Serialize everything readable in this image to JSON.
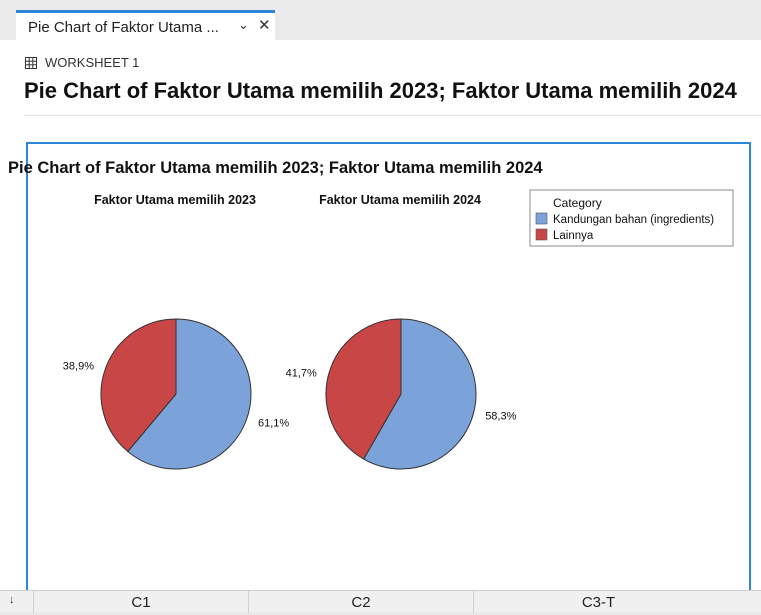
{
  "tab": {
    "title": "Pie Chart of Faktor Utama ...",
    "chevron": "⌄",
    "close": "✕"
  },
  "worksheet": {
    "icon": "grid-icon",
    "label": "WORKSHEET 1"
  },
  "page_title": "Pie Chart of Faktor Utama memilih 2023; Faktor Utama memilih 2024",
  "chart_data": {
    "type": "pie",
    "title": "Pie Chart of Faktor Utama memilih 2023; Faktor Utama memilih 2024",
    "legend": {
      "title": "Category",
      "placement": "top-right"
    },
    "categories": [
      "Kandungan bahan (ingredients)",
      "Lainnya"
    ],
    "colors": [
      "#7ba3d9",
      "#c94646"
    ],
    "pies": [
      {
        "name": "Faktor Utama memilih 2023",
        "values": [
          61.1,
          38.9
        ],
        "labels": [
          "61,1%",
          "38,9%"
        ]
      },
      {
        "name": "Faktor Utama memilih 2024",
        "values": [
          58.3,
          41.7
        ],
        "labels": [
          "58,3%",
          "41,7%"
        ]
      }
    ]
  },
  "columns": [
    "C1",
    "C2",
    "C3-T"
  ],
  "scroll_arrow": "↓"
}
